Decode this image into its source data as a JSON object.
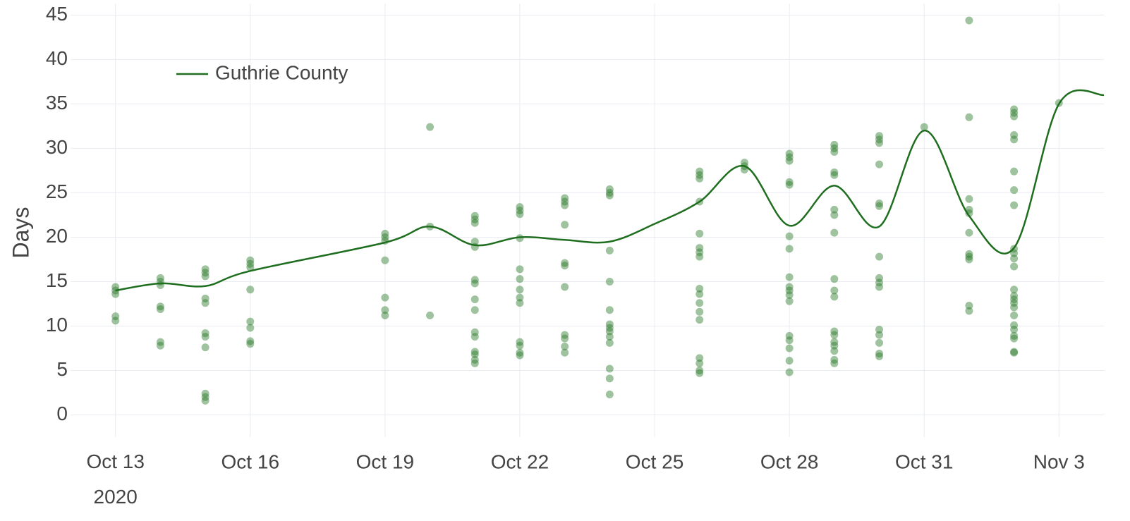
{
  "chart_data": {
    "type": "scatter",
    "y_label": "Days",
    "xlim": [
      "2020-10-12",
      "2020-11-04"
    ],
    "ylim": [
      -2.5,
      46.3
    ],
    "xticks": [
      {
        "value": "2020-10-13",
        "label": "Oct 13\n2020"
      },
      {
        "value": "2020-10-16",
        "label": "Oct 16"
      },
      {
        "value": "2020-10-19",
        "label": "Oct 19"
      },
      {
        "value": "2020-10-22",
        "label": "Oct 22"
      },
      {
        "value": "2020-10-25",
        "label": "Oct 25"
      },
      {
        "value": "2020-10-28",
        "label": "Oct 28"
      },
      {
        "value": "2020-10-31",
        "label": "Oct 31"
      },
      {
        "value": "2020-11-03",
        "label": "Nov 3"
      }
    ],
    "yticks": [
      0,
      5,
      10,
      15,
      20,
      25,
      30,
      35,
      40,
      45
    ],
    "grid": true,
    "legend": "top-left",
    "series": [
      {
        "name": "Guthrie County",
        "type": "line",
        "color": "#1f6e1f",
        "x": [
          "2020-10-13",
          "2020-10-14",
          "2020-10-15",
          "2020-10-16",
          "2020-10-19",
          "2020-10-20",
          "2020-10-21",
          "2020-10-22",
          "2020-10-23",
          "2020-10-24",
          "2020-10-25",
          "2020-10-26",
          "2020-10-27",
          "2020-10-28",
          "2020-10-29",
          "2020-10-30",
          "2020-10-31",
          "2020-11-01",
          "2020-11-02",
          "2020-11-03",
          "2020-11-04"
        ],
        "values": [
          14,
          14.8,
          14.5,
          16.2,
          19.4,
          21.2,
          19.1,
          20,
          19.7,
          19.5,
          21.5,
          24,
          28,
          21.3,
          25.8,
          21.2,
          32,
          22.4,
          18.8,
          35,
          36
        ]
      },
      {
        "type": "scatter",
        "color": "#2b7a2b",
        "opacity": 0.45,
        "x": [
          "2020-10-13",
          "2020-10-13",
          "2020-10-13",
          "2020-10-13",
          "2020-10-13",
          "2020-10-14",
          "2020-10-14",
          "2020-10-14",
          "2020-10-14",
          "2020-10-14",
          "2020-10-14",
          "2020-10-14",
          "2020-10-15",
          "2020-10-15",
          "2020-10-15",
          "2020-10-15",
          "2020-10-15",
          "2020-10-15",
          "2020-10-15",
          "2020-10-15",
          "2020-10-15",
          "2020-10-15",
          "2020-10-15",
          "2020-10-16",
          "2020-10-16",
          "2020-10-16",
          "2020-10-16",
          "2020-10-16",
          "2020-10-16",
          "2020-10-16",
          "2020-10-16",
          "2020-10-19",
          "2020-10-19",
          "2020-10-19",
          "2020-10-19",
          "2020-10-19",
          "2020-10-19",
          "2020-10-19",
          "2020-10-20",
          "2020-10-20",
          "2020-10-20",
          "2020-10-21",
          "2020-10-21",
          "2020-10-21",
          "2020-10-21",
          "2020-10-21",
          "2020-10-21",
          "2020-10-21",
          "2020-10-21",
          "2020-10-21",
          "2020-10-21",
          "2020-10-21",
          "2020-10-21",
          "2020-10-21",
          "2020-10-21",
          "2020-10-21",
          "2020-10-22",
          "2020-10-22",
          "2020-10-22",
          "2020-10-22",
          "2020-10-22",
          "2020-10-22",
          "2020-10-22",
          "2020-10-22",
          "2020-10-22",
          "2020-10-22",
          "2020-10-22",
          "2020-10-22",
          "2020-10-22",
          "2020-10-23",
          "2020-10-23",
          "2020-10-23",
          "2020-10-23",
          "2020-10-23",
          "2020-10-23",
          "2020-10-23",
          "2020-10-23",
          "2020-10-23",
          "2020-10-23",
          "2020-10-23",
          "2020-10-24",
          "2020-10-24",
          "2020-10-24",
          "2020-10-24",
          "2020-10-24",
          "2020-10-24",
          "2020-10-24",
          "2020-10-24",
          "2020-10-24",
          "2020-10-24",
          "2020-10-24",
          "2020-10-24",
          "2020-10-24",
          "2020-10-24",
          "2020-10-26",
          "2020-10-26",
          "2020-10-26",
          "2020-10-26",
          "2020-10-26",
          "2020-10-26",
          "2020-10-26",
          "2020-10-26",
          "2020-10-26",
          "2020-10-26",
          "2020-10-26",
          "2020-10-26",
          "2020-10-26",
          "2020-10-26",
          "2020-10-26",
          "2020-10-26",
          "2020-10-26",
          "2020-10-27",
          "2020-10-27",
          "2020-10-27",
          "2020-10-28",
          "2020-10-28",
          "2020-10-28",
          "2020-10-28",
          "2020-10-28",
          "2020-10-28",
          "2020-10-28",
          "2020-10-28",
          "2020-10-28",
          "2020-10-28",
          "2020-10-28",
          "2020-10-28",
          "2020-10-28",
          "2020-10-28",
          "2020-10-28",
          "2020-10-28",
          "2020-10-28",
          "2020-10-29",
          "2020-10-29",
          "2020-10-29",
          "2020-10-29",
          "2020-10-29",
          "2020-10-29",
          "2020-10-29",
          "2020-10-29",
          "2020-10-29",
          "2020-10-29",
          "2020-10-29",
          "2020-10-29",
          "2020-10-29",
          "2020-10-29",
          "2020-10-29",
          "2020-10-29",
          "2020-10-29",
          "2020-10-29",
          "2020-10-30",
          "2020-10-30",
          "2020-10-30",
          "2020-10-30",
          "2020-10-30",
          "2020-10-30",
          "2020-10-30",
          "2020-10-30",
          "2020-10-30",
          "2020-10-30",
          "2020-10-30",
          "2020-10-30",
          "2020-10-30",
          "2020-10-30",
          "2020-10-30",
          "2020-10-31",
          "2020-11-01",
          "2020-11-01",
          "2020-11-01",
          "2020-11-01",
          "2020-11-01",
          "2020-11-01",
          "2020-11-01",
          "2020-11-01",
          "2020-11-01",
          "2020-11-01",
          "2020-11-01",
          "2020-11-02",
          "2020-11-02",
          "2020-11-02",
          "2020-11-02",
          "2020-11-02",
          "2020-11-02",
          "2020-11-02",
          "2020-11-02",
          "2020-11-02",
          "2020-11-02",
          "2020-11-02",
          "2020-11-02",
          "2020-11-02",
          "2020-11-02",
          "2020-11-02",
          "2020-11-02",
          "2020-11-02",
          "2020-11-02",
          "2020-11-02",
          "2020-11-02",
          "2020-11-02",
          "2020-11-02",
          "2020-11-02",
          "2020-11-02",
          "2020-11-03"
        ],
        "values": [
          14.4,
          14.0,
          13.6,
          11.1,
          10.6,
          15.4,
          15.0,
          14.6,
          12.2,
          11.9,
          8.2,
          7.8,
          16.4,
          16.0,
          15.6,
          13.1,
          12.6,
          9.2,
          8.8,
          7.6,
          2.4,
          2.0,
          1.6,
          17.4,
          17.0,
          16.6,
          14.1,
          10.5,
          9.8,
          8.3,
          8.0,
          20.4,
          20.0,
          19.6,
          17.4,
          13.2,
          11.8,
          11.2,
          32.4,
          21.2,
          11.2,
          22.4,
          22.0,
          21.6,
          19.5,
          18.9,
          15.2,
          14.8,
          13.0,
          11.8,
          9.3,
          8.8,
          7.1,
          6.8,
          6.2,
          5.8,
          23.4,
          23.0,
          22.6,
          19.9,
          16.4,
          15.3,
          14.1,
          13.2,
          12.6,
          8.2,
          7.8,
          7.0,
          6.7,
          24.4,
          24.0,
          23.6,
          21.4,
          17.1,
          16.8,
          14.4,
          9.0,
          8.6,
          7.7,
          7.0,
          25.4,
          25.0,
          24.7,
          18.5,
          15.0,
          11.8,
          10.2,
          9.8,
          9.4,
          8.8,
          8.1,
          5.2,
          4.1,
          2.3,
          27.4,
          27.0,
          26.6,
          24.0,
          20.4,
          18.8,
          18.3,
          17.8,
          14.2,
          13.6,
          12.6,
          11.6,
          10.7,
          6.4,
          5.8,
          5.0,
          4.7,
          28.4,
          28.0,
          27.6,
          29.4,
          29.0,
          28.6,
          26.2,
          25.9,
          20.1,
          18.7,
          15.5,
          14.4,
          14.0,
          13.5,
          12.8,
          8.9,
          8.4,
          7.5,
          6.1,
          4.8,
          30.4,
          30.0,
          29.6,
          27.3,
          27.0,
          23.1,
          22.5,
          20.5,
          15.3,
          14.0,
          13.3,
          9.4,
          9.0,
          8.2,
          7.8,
          7.2,
          6.2,
          5.8,
          31.4,
          31.0,
          30.6,
          28.2,
          23.8,
          23.5,
          17.8,
          15.4,
          14.9,
          14.4,
          9.6,
          9.0,
          8.1,
          6.9,
          6.6,
          32.4,
          44.4,
          33.5,
          24.3,
          23.1,
          22.7,
          20.5,
          18.1,
          17.8,
          17.5,
          12.3,
          11.7,
          34.4,
          34.0,
          33.6,
          31.5,
          31.0,
          27.4,
          25.3,
          23.6,
          18.7,
          18.2,
          17.6,
          16.7,
          14.1,
          13.4,
          13.0,
          12.6,
          12.1,
          11.2,
          10.1,
          9.6,
          8.9,
          8.6,
          7.1,
          7.0,
          35.1
        ]
      }
    ]
  }
}
